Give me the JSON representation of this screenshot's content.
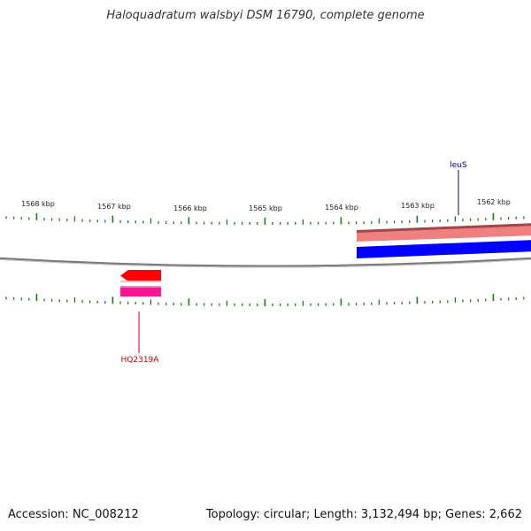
{
  "title": "Haloquadratum walsbyi DSM 16790, complete genome",
  "footer": {
    "accession": "Accession: NC_008212",
    "summary": "Topology: circular; Length: 3,132,494 bp; Genes: 2,662"
  },
  "axis": {
    "labels": [
      "1568 kbp",
      "1567 kbp",
      "1566 kbp",
      "1565 kbp",
      "1564 kbp",
      "1563 kbp",
      "1562 kbp"
    ]
  },
  "features": {
    "leuS": {
      "label": "leuS",
      "color": "#00008b"
    },
    "hq2319a": {
      "label": "HQ2319A",
      "color": "#cc0000"
    }
  },
  "colors": {
    "tick": "#1a7a1a",
    "backbone": "#7a7a7a",
    "red_arrow": "#ff0000",
    "magenta_bar": "#ff1493",
    "salmon_bar": "#f08080",
    "blue_bar": "#0000ff"
  }
}
